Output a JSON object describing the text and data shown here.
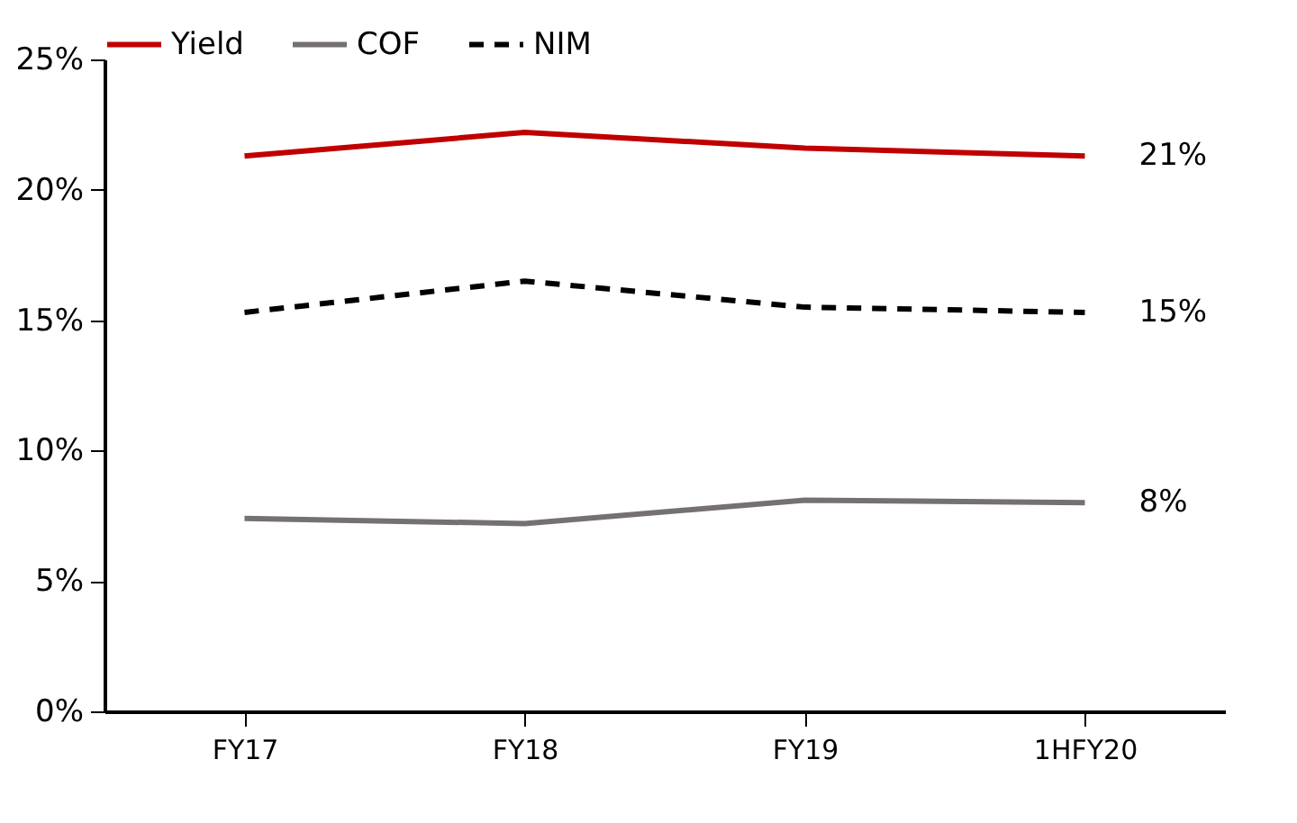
{
  "chart_data": {
    "type": "line",
    "categories": [
      "FY17",
      "FY18",
      "FY19",
      "1HFY20"
    ],
    "series": [
      {
        "name": "Yield",
        "color": "#c00000",
        "line_style": "solid",
        "values": [
          21.3,
          22.2,
          21.6,
          21.3
        ],
        "value_labels": [
          null,
          null,
          null,
          "21%"
        ]
      },
      {
        "name": "COF",
        "color": "#767171",
        "line_style": "solid",
        "values": [
          7.4,
          7.2,
          8.1,
          8.0
        ],
        "value_labels": [
          null,
          null,
          null,
          "8%"
        ]
      },
      {
        "name": "NIM",
        "color": "#000000",
        "line_style": "dashed",
        "values": [
          15.3,
          16.5,
          15.5,
          15.3
        ],
        "value_labels": [
          null,
          null,
          null,
          "15%"
        ]
      }
    ],
    "ylim": [
      0,
      25
    ],
    "yticks": [
      {
        "value": 0,
        "label": "0%"
      },
      {
        "value": 5,
        "label": "5%"
      },
      {
        "value": 10,
        "label": "10%"
      },
      {
        "value": 15,
        "label": "15%"
      },
      {
        "value": 20,
        "label": "20%"
      },
      {
        "value": 25,
        "label": "25%"
      }
    ],
    "grid": false,
    "legend": "top",
    "marker": "none"
  }
}
